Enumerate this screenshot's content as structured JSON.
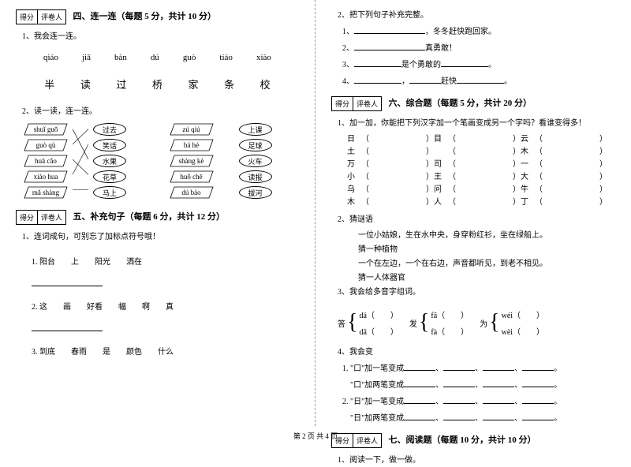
{
  "scorebox": {
    "score": "得分",
    "grader": "评卷人"
  },
  "sec4": {
    "title": "四、连一连（每题 5 分，共计 10 分）",
    "q1": "1、我会连一连。",
    "pinyin": [
      "qiáo",
      "jiā",
      "bàn",
      "dú",
      "guò",
      "tiáo",
      "xiào"
    ],
    "hanzi": [
      "半",
      "读",
      "过",
      "桥",
      "家",
      "条",
      "校"
    ],
    "q2": "2、读一读，连一连。",
    "leftPinyin": [
      "shuǐ guǒ",
      "guò qù",
      "huā cǎo",
      "xiào hua",
      "mǎ shàng"
    ],
    "leftHanzi": [
      "过去",
      "笑话",
      "水果",
      "花草",
      "马上"
    ],
    "rightPinyin": [
      "zú qiú",
      "bá hé",
      "shàng kè",
      "huǒ chē",
      "dú bào"
    ],
    "rightHanzi": [
      "上课",
      "足球",
      "火车",
      "读报",
      "拔河"
    ]
  },
  "sec5": {
    "title": "五、补充句子（每题 6 分，共计 12 分）",
    "q1": "1、连词成句，可别忘了加标点符号哦！",
    "items": [
      "1. 阳台　　上　　阳光　　洒在",
      "2. 这　　画　　好看　　幅　　啊　　真",
      "3. 到底　　春雨　　是　　颜色　　什么"
    ]
  },
  "sec5b": {
    "q2": "2、把下列句子补充完整。",
    "lines": [
      {
        "n": "1、",
        "tail": "，冬冬赶快跑回家。"
      },
      {
        "n": "2、",
        "tail": "真勇敢！"
      },
      {
        "n": "3、",
        "mid": "是个勇敢的",
        "tail": "。"
      },
      {
        "n": "4、",
        "mid": "，",
        "mid2": "赶快",
        "tail": "。"
      }
    ]
  },
  "sec6": {
    "title": "六、综合题（每题 5 分，共计 20 分）",
    "q1": "1、加一加，你能把下列汉字加一个笔画变成另一个字吗？看谁变得多！",
    "grid": [
      [
        "日",
        "目",
        "云"
      ],
      [
        "土",
        "",
        "木"
      ],
      [
        "万",
        "司",
        "一"
      ],
      [
        "小",
        "王",
        "大"
      ],
      [
        "乌",
        "问",
        "牛"
      ],
      [
        "木",
        "人",
        "丁"
      ]
    ],
    "q2": "2、猜谜语",
    "riddles": [
      "　　一位小姑娘，生在水中央，身穿粉红衫，坐在绿船上。",
      "　　猜一种植物",
      "　　一个在左边，一个在右边，声音都听见，到老不相见。",
      "　　猜一人体器官"
    ],
    "q3": "3、我会给多音字组词。",
    "multi": [
      {
        "char": "答",
        "items": [
          {
            "py": "dá",
            "w": ""
          },
          {
            "py": "dā",
            "w": ""
          }
        ]
      },
      {
        "char": "发",
        "items": [
          {
            "py": "fā",
            "w": ""
          },
          {
            "py": "fà",
            "w": ""
          }
        ]
      },
      {
        "char": "为",
        "items": [
          {
            "py": "wéi",
            "w": ""
          },
          {
            "py": "wèi",
            "w": ""
          }
        ]
      }
    ],
    "q4": "4、我会变",
    "q4lines": [
      "1. \"口\"加一笔变成",
      "　\"口\"加两笔变成",
      "2. \"日\"加一笔变成",
      "　\"日\"加两笔变成"
    ]
  },
  "sec7": {
    "title": "七、阅读题（每题 10 分，共计 10 分）",
    "q1": "1、阅读一下，做一做。"
  },
  "footer": "第 2 页 共 4 页"
}
